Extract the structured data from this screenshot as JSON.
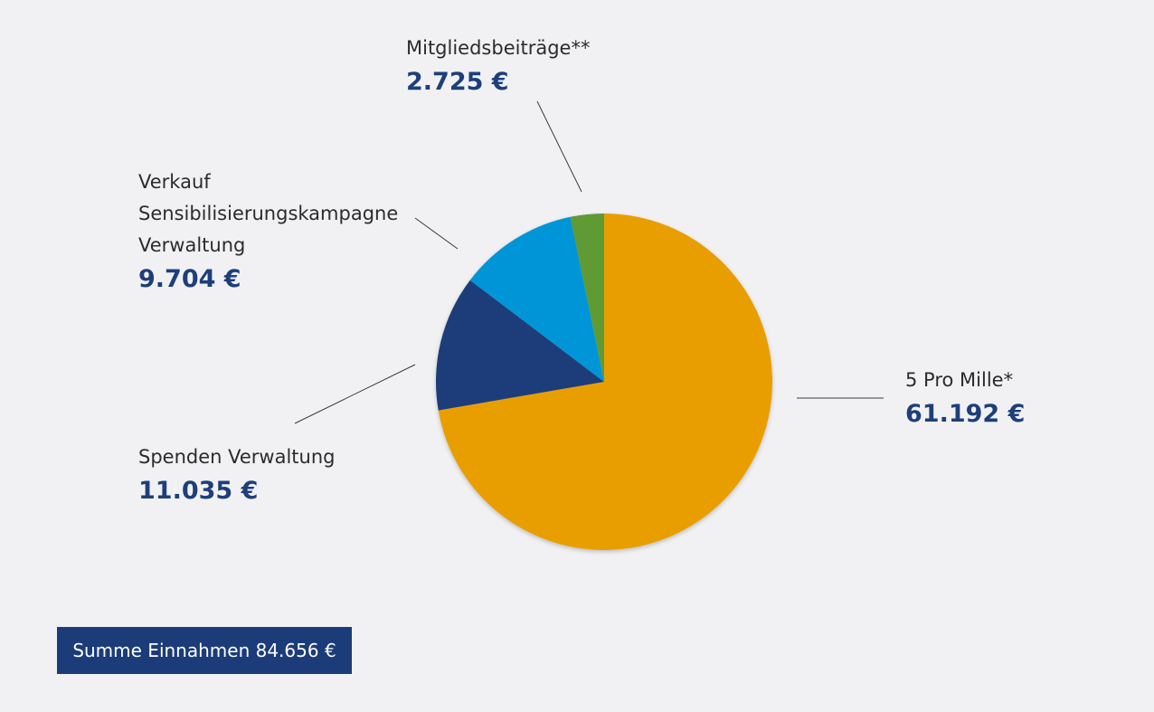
{
  "chart_data": {
    "type": "pie",
    "currency": "€",
    "slices": [
      {
        "name_lines": [
          "5 Pro Mille*"
        ],
        "value": 61192,
        "value_label": "61.192 €",
        "color": "#e99e00"
      },
      {
        "name_lines": [
          "Spenden Verwaltung"
        ],
        "value": 11035,
        "value_label": "11.035 €",
        "color": "#1b3c79"
      },
      {
        "name_lines": [
          "Verkauf",
          "Sensibilisierungskampagne",
          "Verwaltung"
        ],
        "value": 9704,
        "value_label": "9.704 €",
        "color": "#0095d6"
      },
      {
        "name_lines": [
          "Mitgliedsbeiträge**"
        ],
        "value": 2725,
        "value_label": "2.725 €",
        "color": "#5f9a35"
      }
    ],
    "legend": "none",
    "start_angle": "12 o'clock",
    "direction": "clockwise"
  },
  "summary": {
    "total_label": "Summe Einnahmen 84.656 €",
    "box_color": "#1b3c79"
  },
  "colors": {
    "background": "#f1f1f3",
    "value_text": "#1d3f7a",
    "leader_line": "#3a3a3a"
  }
}
